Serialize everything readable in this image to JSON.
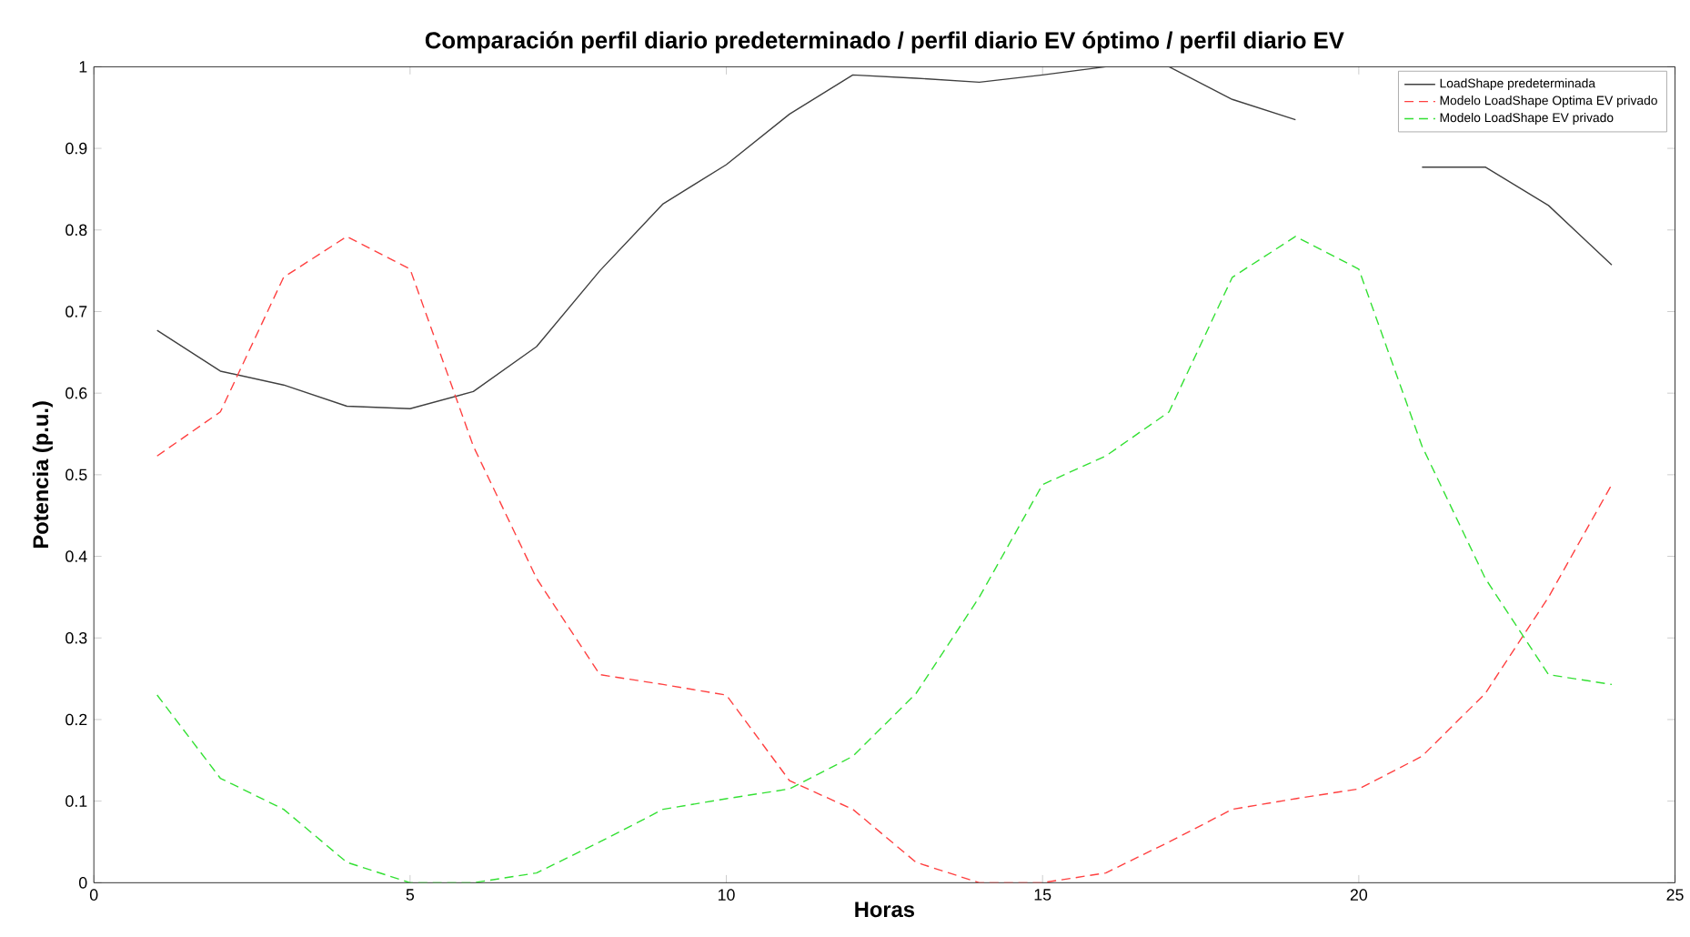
{
  "chart_data": {
    "type": "line",
    "title": "Comparación perfil diario predeterminado / perfil diario EV óptimo / perfil diario EV",
    "xlabel": "Horas",
    "ylabel": "Potencia (p.u.)",
    "x": [
      1,
      2,
      3,
      4,
      5,
      6,
      7,
      8,
      9,
      10,
      11,
      12,
      13,
      14,
      15,
      16,
      17,
      18,
      19,
      20,
      21,
      22,
      23,
      24
    ],
    "series": [
      {
        "name": "LoadShape predeterminada",
        "color": "#404040",
        "line_style": "solid",
        "values": [
          0.677,
          0.627,
          0.61,
          0.584,
          0.581,
          0.602,
          0.657,
          0.75,
          0.832,
          0.88,
          0.942,
          0.99,
          0.986,
          0.981,
          0.99,
          1.0,
          1.0,
          0.96,
          0.935,
          null,
          0.877,
          0.877,
          0.83,
          0.757
        ]
      },
      {
        "name": "Modelo LoadShape Optima EV privado",
        "color": "#ff4040",
        "line_style": "dashed",
        "values": [
          0.523,
          0.577,
          0.742,
          0.792,
          0.752,
          0.535,
          0.373,
          0.255,
          0.243,
          0.23,
          0.125,
          0.09,
          0.025,
          0.0,
          0.0,
          0.012,
          0.05,
          0.09,
          0.103,
          0.115,
          0.155,
          0.232,
          0.35,
          0.488
        ]
      },
      {
        "name": "Modelo LoadShape EV privado",
        "color": "#33e033",
        "line_style": "dashed",
        "values": [
          0.23,
          0.128,
          0.09,
          0.025,
          0.0,
          0.0,
          0.012,
          0.05,
          0.09,
          0.103,
          0.115,
          0.155,
          0.232,
          0.35,
          0.488,
          0.523,
          0.577,
          0.742,
          0.792,
          0.752,
          0.535,
          0.373,
          0.255,
          0.243
        ]
      }
    ],
    "xlim": [
      0,
      25
    ],
    "xticks": [
      0,
      5,
      10,
      15,
      20,
      25
    ],
    "ylim": [
      0,
      1
    ],
    "yticks": [
      0,
      0.1,
      0.2,
      0.3,
      0.4,
      0.5,
      0.6,
      0.7,
      0.8,
      0.9,
      1
    ],
    "grid": false,
    "legend": "top right",
    "marker": "none"
  }
}
